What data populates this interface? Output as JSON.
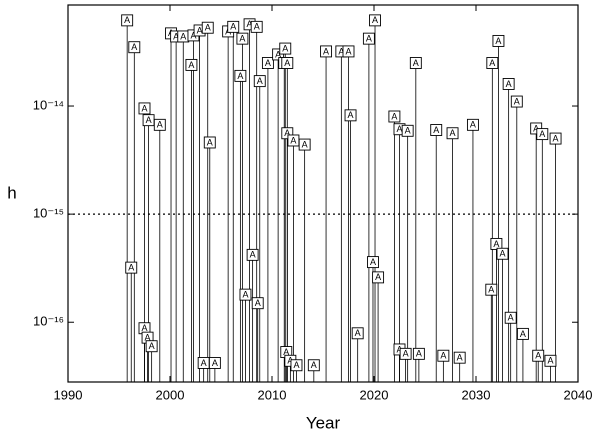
{
  "chart_data": {
    "type": "stem",
    "x_label": "Year",
    "y_label": "h",
    "marker_label": "A",
    "yscale": "log",
    "xlim": [
      1990,
      2040
    ],
    "xticks": [
      1990,
      2000,
      2010,
      2020,
      2030,
      2040
    ],
    "ylim": [
      2.8e-17,
      8.6e-14
    ],
    "yticks": [
      {
        "value": 1e-16,
        "label": "10⁻¹⁶"
      },
      {
        "value": 1e-15,
        "label": "10⁻¹⁵"
      },
      {
        "value": 1e-14,
        "label": "10⁻¹⁴"
      }
    ],
    "threshold": 1e-15,
    "color": "#000000",
    "x": [
      1995.8,
      1996.5,
      1996.2,
      1997.5,
      1997.9,
      1997.5,
      1997.8,
      1998.2,
      1999.0,
      2000.1,
      2000.6,
      2001.3,
      2002.3,
      2002.1,
      2002.9,
      2003.3,
      2003.7,
      2003.9,
      2004.4,
      2005.7,
      2006.2,
      2006.9,
      2007.1,
      2007.4,
      2007.8,
      2008.1,
      2008.5,
      2008.8,
      2008.6,
      2009.6,
      2010.6,
      2011.3,
      2011.2,
      2011.5,
      2011.5,
      2012.1,
      2011.4,
      2011.8,
      2012.4,
      2013.2,
      2014.1,
      2015.3,
      2016.8,
      2017.5,
      2017.7,
      2018.4,
      2019.5,
      2020.1,
      2019.9,
      2020.4,
      2022.0,
      2022.5,
      2023.3,
      2022.5,
      2023.1,
      2024.4,
      2024.1,
      2026.1,
      2026.8,
      2027.7,
      2028.4,
      2029.7,
      2031.5,
      2031.6,
      2032.2,
      2032.0,
      2032.6,
      2033.2,
      2033.4,
      2034.0,
      2034.6,
      2035.9,
      2036.5,
      2036.1,
      2037.3,
      2037.8
    ],
    "values": [
      6.2e-14,
      3.5e-14,
      3.2e-16,
      9.5e-15,
      7.4e-15,
      8.8e-17,
      7.2e-17,
      6e-17,
      6.7e-15,
      4.7e-14,
      4.4e-14,
      4.4e-14,
      4.5e-14,
      2.4e-14,
      5e-14,
      4.2e-17,
      5.3e-14,
      4.6e-15,
      4.2e-17,
      4.9e-14,
      5.4e-14,
      1.9e-14,
      4.2e-14,
      1.8e-16,
      5.7e-14,
      4.2e-16,
      5.4e-14,
      1.7e-14,
      1.5e-16,
      2.5e-14,
      3e-14,
      3.4e-14,
      2.5e-14,
      2.5e-14,
      5.6e-15,
      4.8e-15,
      5.3e-17,
      4.4e-17,
      4e-17,
      4.4e-15,
      4e-17,
      3.2e-14,
      3.2e-14,
      3.2e-14,
      8.2e-15,
      7.9e-17,
      4.2e-14,
      6.2e-14,
      3.6e-16,
      2.6e-16,
      8e-15,
      6.1e-15,
      5.9e-15,
      5.6e-17,
      5.1e-17,
      5.1e-17,
      2.5e-14,
      6e-15,
      4.9e-17,
      5.6e-15,
      4.7e-17,
      6.7e-15,
      2e-16,
      2.5e-14,
      4e-14,
      5.3e-16,
      4.3e-16,
      1.6e-14,
      1.1e-16,
      1.1e-14,
      7.8e-17,
      6.2e-15,
      5.5e-15,
      4.9e-17,
      4.4e-17,
      5e-15
    ]
  }
}
